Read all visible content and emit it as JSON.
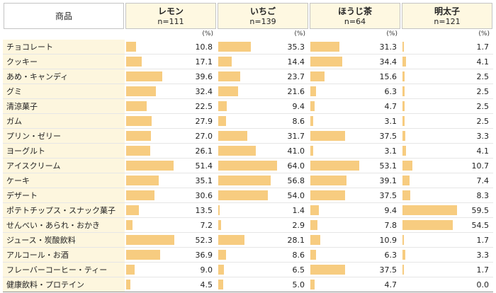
{
  "colors": {
    "bar": "#f7cc80",
    "header_bg": "#fef8e1",
    "label_bg": "#fdf6de",
    "header_border": "#c4c4c4",
    "row_border": "#e6e6e6",
    "bottom_border": "#909090"
  },
  "chart_data": {
    "type": "bar",
    "orientation": "horizontal",
    "corner_label": "商品",
    "unit_label": "(%)",
    "xlim": [
      0,
      100
    ],
    "grid": false,
    "legend_position": "none",
    "columns": [
      {
        "label": "レモン",
        "n_label": "n=111"
      },
      {
        "label": "いちご",
        "n_label": "n=139"
      },
      {
        "label": "ほうじ茶",
        "n_label": "n=64"
      },
      {
        "label": "明太子",
        "n_label": "n=121"
      }
    ],
    "categories": [
      "チョコレート",
      "クッキー",
      "あめ・キャンディ",
      "グミ",
      "清涼菓子",
      "ガム",
      "プリン・ゼリー",
      "ヨーグルト",
      "アイスクリーム",
      "ケーキ",
      "デザート",
      "ポテトチップス・スナック菓子",
      "せんべい・あられ・おかき",
      "ジュース・炭酸飲料",
      "アルコール・お酒",
      "フレーバーコーヒー・ティー",
      "健康飲料・プロテイン"
    ],
    "series": [
      {
        "name": "レモン",
        "values": [
          10.8,
          17.1,
          39.6,
          32.4,
          22.5,
          27.9,
          27.0,
          26.1,
          51.4,
          35.1,
          30.6,
          13.5,
          7.2,
          52.3,
          36.9,
          9.0,
          4.5
        ]
      },
      {
        "name": "いちご",
        "values": [
          35.3,
          14.4,
          23.7,
          21.6,
          9.4,
          8.6,
          31.7,
          41.0,
          64.0,
          56.8,
          54.0,
          1.4,
          2.9,
          28.1,
          8.6,
          6.5,
          5.0
        ]
      },
      {
        "name": "ほうじ茶",
        "values": [
          31.3,
          34.4,
          15.6,
          6.3,
          4.7,
          3.1,
          37.5,
          3.1,
          53.1,
          39.1,
          37.5,
          9.4,
          7.8,
          10.9,
          6.3,
          37.5,
          4.7
        ]
      },
      {
        "name": "明太子",
        "values": [
          1.7,
          4.1,
          2.5,
          2.5,
          2.5,
          2.5,
          3.3,
          4.1,
          10.7,
          7.4,
          8.3,
          59.5,
          54.5,
          1.7,
          3.3,
          1.7,
          0.0
        ]
      }
    ]
  }
}
